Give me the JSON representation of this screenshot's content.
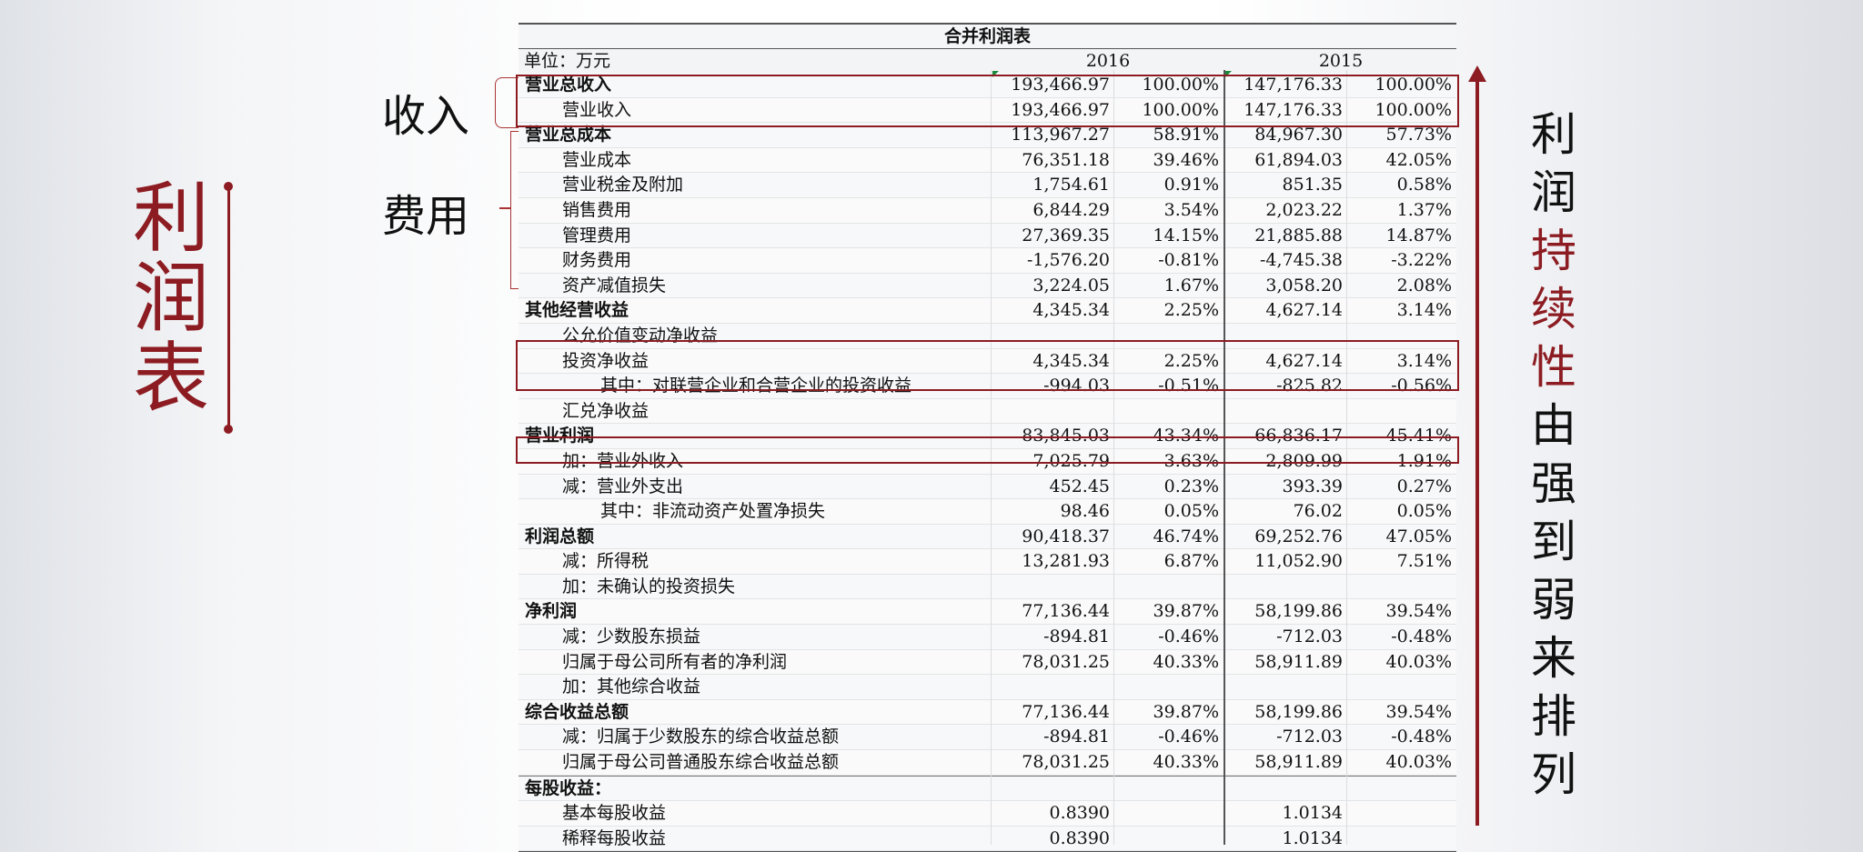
{
  "side_title": [
    "利",
    "润",
    "表"
  ],
  "annotations": {
    "income": "收入",
    "expense": "费用"
  },
  "statement": {
    "title": "合并利润表",
    "unit": "单位：万元",
    "year_2016": "2016",
    "year_2015": "2015",
    "rows": [
      {
        "label": "营业总收入",
        "level": 0,
        "v2016": "193,466.97",
        "p2016": "100.00%",
        "v2015": "147,176.33",
        "p2015": "100.00%"
      },
      {
        "label": "营业收入",
        "level": 1,
        "v2016": "193,466.97",
        "p2016": "100.00%",
        "v2015": "147,176.33",
        "p2015": "100.00%"
      },
      {
        "label": "营业总成本",
        "level": 0,
        "v2016": "113,967.27",
        "p2016": "58.91%",
        "v2015": "84,967.30",
        "p2015": "57.73%"
      },
      {
        "label": "营业成本",
        "level": 1,
        "v2016": "76,351.18",
        "p2016": "39.46%",
        "v2015": "61,894.03",
        "p2015": "42.05%"
      },
      {
        "label": "营业税金及附加",
        "level": 1,
        "v2016": "1,754.61",
        "p2016": "0.91%",
        "v2015": "851.35",
        "p2015": "0.58%"
      },
      {
        "label": "销售费用",
        "level": 1,
        "v2016": "6,844.29",
        "p2016": "3.54%",
        "v2015": "2,023.22",
        "p2015": "1.37%"
      },
      {
        "label": "管理费用",
        "level": 1,
        "v2016": "27,369.35",
        "p2016": "14.15%",
        "v2015": "21,885.88",
        "p2015": "14.87%"
      },
      {
        "label": "财务费用",
        "level": 1,
        "v2016": "-1,576.20",
        "p2016": "-0.81%",
        "v2015": "-4,745.38",
        "p2015": "-3.22%"
      },
      {
        "label": "资产减值损失",
        "level": 1,
        "v2016": "3,224.05",
        "p2016": "1.67%",
        "v2015": "3,058.20",
        "p2015": "2.08%"
      },
      {
        "label": "其他经营收益",
        "level": 0,
        "v2016": "4,345.34",
        "p2016": "2.25%",
        "v2015": "4,627.14",
        "p2015": "3.14%"
      },
      {
        "label": "公允价值变动净收益",
        "level": 1,
        "v2016": "",
        "p2016": "",
        "v2015": "",
        "p2015": ""
      },
      {
        "label": "投资净收益",
        "level": 1,
        "v2016": "4,345.34",
        "p2016": "2.25%",
        "v2015": "4,627.14",
        "p2015": "3.14%"
      },
      {
        "label": "其中：对联营企业和合营企业的投资收益",
        "level": 2,
        "v2016": "-994.03",
        "p2016": "-0.51%",
        "v2015": "-825.82",
        "p2015": "-0.56%"
      },
      {
        "label": "汇兑净收益",
        "level": 1,
        "v2016": "",
        "p2016": "",
        "v2015": "",
        "p2015": ""
      },
      {
        "label": "营业利润",
        "level": 0,
        "v2016": "83,845.03",
        "p2016": "43.34%",
        "v2015": "66,836.17",
        "p2015": "45.41%"
      },
      {
        "label": "加：营业外收入",
        "level": 1,
        "v2016": "7,025.79",
        "p2016": "3.63%",
        "v2015": "2,809.99",
        "p2015": "1.91%"
      },
      {
        "label": "减：营业外支出",
        "level": 1,
        "v2016": "452.45",
        "p2016": "0.23%",
        "v2015": "393.39",
        "p2015": "0.27%"
      },
      {
        "label": "其中：非流动资产处置净损失",
        "level": 2,
        "v2016": "98.46",
        "p2016": "0.05%",
        "v2015": "76.02",
        "p2015": "0.05%"
      },
      {
        "label": "利润总额",
        "level": 0,
        "v2016": "90,418.37",
        "p2016": "46.74%",
        "v2015": "69,252.76",
        "p2015": "47.05%"
      },
      {
        "label": "减：所得税",
        "level": 1,
        "v2016": "13,281.93",
        "p2016": "6.87%",
        "v2015": "11,052.90",
        "p2015": "7.51%"
      },
      {
        "label": "加：未确认的投资损失",
        "level": 1,
        "v2016": "",
        "p2016": "",
        "v2015": "",
        "p2015": ""
      },
      {
        "label": "净利润",
        "level": 0,
        "v2016": "77,136.44",
        "p2016": "39.87%",
        "v2015": "58,199.86",
        "p2015": "39.54%"
      },
      {
        "label": "减：少数股东损益",
        "level": 1,
        "v2016": "-894.81",
        "p2016": "-0.46%",
        "v2015": "-712.03",
        "p2015": "-0.48%"
      },
      {
        "label": "归属于母公司所有者的净利润",
        "level": 1,
        "v2016": "78,031.25",
        "p2016": "40.33%",
        "v2015": "58,911.89",
        "p2015": "40.03%"
      },
      {
        "label": "加：其他综合收益",
        "level": 1,
        "v2016": "",
        "p2016": "",
        "v2015": "",
        "p2015": ""
      },
      {
        "label": "综合收益总额",
        "level": 0,
        "v2016": "77,136.44",
        "p2016": "39.87%",
        "v2015": "58,199.86",
        "p2015": "39.54%"
      },
      {
        "label": "减：归属于少数股东的综合收益总额",
        "level": 1,
        "v2016": "-894.81",
        "p2016": "-0.46%",
        "v2015": "-712.03",
        "p2015": "-0.48%"
      },
      {
        "label": "归属于母公司普通股东综合收益总额",
        "level": 1,
        "v2016": "78,031.25",
        "p2016": "40.33%",
        "v2015": "58,911.89",
        "p2015": "40.03%"
      },
      {
        "label": "每股收益：",
        "level": 0,
        "v2016": "",
        "p2016": "",
        "v2015": "",
        "p2015": ""
      },
      {
        "label": "基本每股收益",
        "level": 1,
        "v2016": "0.8390",
        "p2016": "",
        "v2015": "1.0134",
        "p2015": ""
      },
      {
        "label": "稀释每股收益",
        "level": 1,
        "v2016": "0.8390",
        "p2016": "",
        "v2015": "1.0134",
        "p2015": ""
      }
    ]
  },
  "trend_text": [
    {
      "ch": "利",
      "emphasis": false
    },
    {
      "ch": "润",
      "emphasis": false
    },
    {
      "ch": "持",
      "emphasis": true
    },
    {
      "ch": "续",
      "emphasis": true
    },
    {
      "ch": "性",
      "emphasis": true
    },
    {
      "ch": "由",
      "emphasis": false
    },
    {
      "ch": "强",
      "emphasis": false
    },
    {
      "ch": "到",
      "emphasis": false
    },
    {
      "ch": "弱",
      "emphasis": false
    },
    {
      "ch": "来",
      "emphasis": false
    },
    {
      "ch": "排",
      "emphasis": false
    },
    {
      "ch": "列",
      "emphasis": false
    }
  ],
  "colors": {
    "accent": "#8c1c22",
    "text": "#111111",
    "rule": "#555555"
  }
}
